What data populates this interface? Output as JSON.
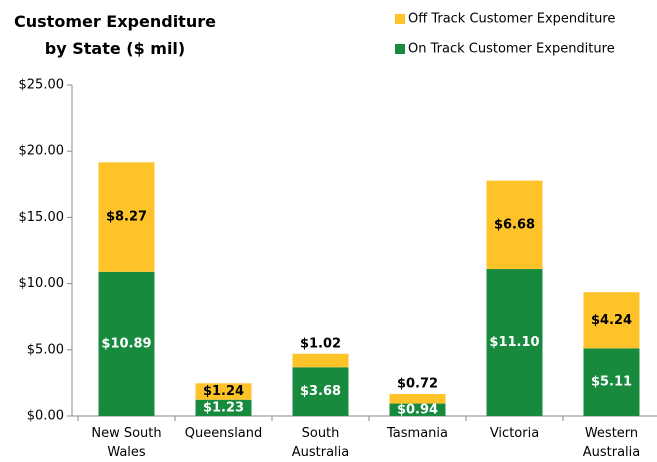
{
  "chart_data": {
    "type": "stacked_bar",
    "title": "Customer Expenditure by State ($ mil)",
    "categories": [
      "New South Wales",
      "Queensland",
      "South Australia",
      "Tasmania",
      "Victoria",
      "Western Australia"
    ],
    "series": [
      {
        "name": "On Track Customer Expenditure",
        "color": "#178a3e",
        "values": [
          10.89,
          1.23,
          3.68,
          0.94,
          11.1,
          5.11
        ],
        "value_labels": [
          "$10.89",
          "$1.23",
          "$3.68",
          "$0.94",
          "$11.10",
          "$5.11"
        ]
      },
      {
        "name": "Off Track Customer Expenditure",
        "color": "#fdc329",
        "values": [
          8.27,
          1.24,
          1.02,
          0.72,
          6.68,
          4.24
        ],
        "value_labels": [
          "$8.27",
          "$1.24",
          "$1.02",
          "$0.72",
          "$6.68",
          "$4.24"
        ]
      }
    ],
    "ylim": [
      0,
      25
    ],
    "yticks": [
      {
        "value": 0,
        "label": "$0.00"
      },
      {
        "value": 5,
        "label": "$5.00"
      },
      {
        "value": 10,
        "label": "$10.00"
      },
      {
        "value": 15,
        "label": "$15.00"
      },
      {
        "value": 20,
        "label": "$20.00"
      },
      {
        "value": 25,
        "label": "$25.00"
      }
    ],
    "legend": "top-right",
    "grid": false
  }
}
